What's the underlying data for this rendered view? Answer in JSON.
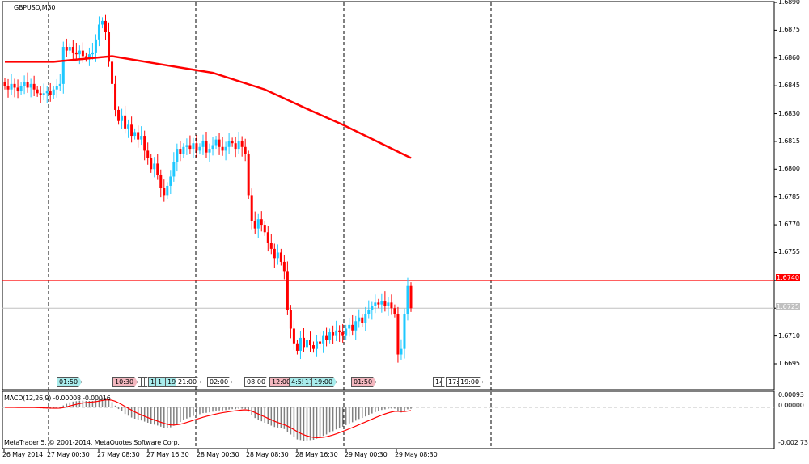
{
  "symbol_title": "GBPUSD,M30",
  "colors": {
    "bull": "#1ec8ff",
    "bear": "#ff0000",
    "doji": "#000000",
    "ma": "#ff0000",
    "macd_hist": "#808080",
    "macd_signal": "#ff0000",
    "ask_line": "#ff0000",
    "bid_line": "#c0c0c0"
  },
  "price_axis": {
    "ticks": [
      "1.6890",
      "1.6875",
      "1.6860",
      "1.6845",
      "1.6830",
      "1.6815",
      "1.6800",
      "1.6785",
      "1.6770",
      "1.6755",
      "1.6740",
      "1.6725",
      "1.6710",
      "1.6695"
    ],
    "max": 1.689,
    "min": 1.6695
  },
  "price_tags": {
    "ask": "1.6740",
    "bid": "1.6725"
  },
  "macd": {
    "label": "MACD(12,26,9) -0.00008 -0.00016",
    "axis_ticks": [
      "0.00093",
      "0.00000",
      "-0.002 73"
    ],
    "max": 0.00093,
    "min": -0.00273
  },
  "copyright": "MetaTrader 5, © 2001-2014, MetaQuotes Software Corp.",
  "time_axis": [
    "26 May 2014",
    "27 May 00:30",
    "27 May 08:30",
    "27 May 16:30",
    "28 May 00:30",
    "28 May 08:30",
    "28 May 16:30",
    "29 May 00:30",
    "29 May 08:30"
  ],
  "events": [
    {
      "label": "01:50",
      "color": "#a8ecec"
    },
    {
      "label": "10:30",
      "color": "#f4b8c0"
    },
    {
      "label": "",
      "color": "#ffffff"
    },
    {
      "label": "",
      "color": "#ffffff"
    },
    {
      "label": "",
      "color": "#ffffff"
    },
    {
      "label": "1",
      "color": "#a8ecec"
    },
    {
      "label": "1:",
      "color": "#a8ecec"
    },
    {
      "label": "19:",
      "color": "#a8ecec"
    },
    {
      "label": "21:00",
      "color": "#ffffff"
    },
    {
      "label": "02:00",
      "color": "#ffffff"
    },
    {
      "label": "08:00",
      "color": "#ffffff"
    },
    {
      "label": "12:00",
      "color": "#f4b8c0"
    },
    {
      "label": "4:55",
      "color": "#a8ecec"
    },
    {
      "label": "17",
      "color": "#a8ecec"
    },
    {
      "label": "19:00",
      "color": "#a8ecec"
    },
    {
      "label": "01:50",
      "color": "#f4b8c0"
    },
    {
      "label": "14",
      "color": "#ffffff"
    },
    {
      "label": "",
      "color": "#ffffff"
    },
    {
      "label": "17:",
      "color": "#ffffff"
    },
    {
      "label": "19:00",
      "color": "#ffffff"
    }
  ],
  "chart_data": {
    "type": "candlestick",
    "title": "GBPUSD,M30",
    "ylim": [
      1.6695,
      1.689
    ],
    "closes": [
      1.6845,
      1.6843,
      1.6846,
      1.6844,
      1.6842,
      1.6845,
      1.6847,
      1.6844,
      1.6846,
      1.6843,
      1.6841,
      1.684,
      1.6841,
      1.6842,
      1.684,
      1.6843,
      1.6845,
      1.6846,
      1.6866,
      1.6864,
      1.6866,
      1.6863,
      1.6862,
      1.6864,
      1.6861,
      1.686,
      1.6862,
      1.6863,
      1.687,
      1.6878,
      1.688,
      1.6874,
      1.6858,
      1.6846,
      1.6832,
      1.6826,
      1.6829,
      1.6822,
      1.6824,
      1.6818,
      1.682,
      1.6816,
      1.6818,
      1.681,
      1.6806,
      1.68,
      1.6803,
      1.6797,
      1.679,
      1.6786,
      1.6791,
      1.6796,
      1.6804,
      1.6811,
      1.6808,
      1.6812,
      1.6813,
      1.6811,
      1.6814,
      1.681,
      1.6812,
      1.6815,
      1.6809,
      1.6811,
      1.6813,
      1.6816,
      1.6812,
      1.681,
      1.6812,
      1.6815,
      1.6814,
      1.6811,
      1.6815,
      1.6812,
      1.6808,
      1.6786,
      1.6772,
      1.6768,
      1.6773,
      1.677,
      1.6766,
      1.676,
      1.6757,
      1.6752,
      1.6755,
      1.675,
      1.6745,
      1.6724,
      1.6714,
      1.6706,
      1.6702,
      1.6709,
      1.6704,
      1.6708,
      1.6705,
      1.6703,
      1.6707,
      1.6706,
      1.671,
      1.6708,
      1.6712,
      1.671,
      1.6713,
      1.6712,
      1.671,
      1.6714,
      1.6716,
      1.6713,
      1.6718,
      1.672,
      1.6717,
      1.6722,
      1.6724,
      1.6726,
      1.6728,
      1.6727,
      1.6729,
      1.6726,
      1.6728,
      1.6725,
      1.6722,
      1.67,
      1.6703,
      1.6722,
      1.6737,
      1.6725
    ],
    "moving_average": [
      [
        0,
        1.6858
      ],
      [
        15,
        1.6858
      ],
      [
        33,
        1.6861
      ],
      [
        50,
        1.6856
      ],
      [
        64,
        1.6852
      ],
      [
        80,
        1.6843
      ],
      [
        95,
        1.6831
      ],
      [
        104,
        1.6824
      ],
      [
        125,
        1.6806
      ]
    ],
    "ask": 1.674,
    "bid": 1.6725
  }
}
